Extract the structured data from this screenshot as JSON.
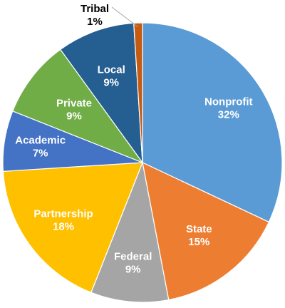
{
  "chart_data": {
    "type": "pie",
    "title": "",
    "start_angle_deg": 0,
    "direction": "clockwise",
    "slices": [
      {
        "name": "Nonprofit",
        "value": 32,
        "label": "32%",
        "color": "#5b9bd5",
        "text_color": "#ffffff",
        "dark_text": false
      },
      {
        "name": "State",
        "value": 15,
        "label": "15%",
        "color": "#ed7d31",
        "text_color": "#ffffff",
        "dark_text": false
      },
      {
        "name": "Federal",
        "value": 9,
        "label": "9%",
        "color": "#a5a5a5",
        "text_color": "#ffffff",
        "dark_text": false
      },
      {
        "name": "Partnership",
        "value": 18,
        "label": "18%",
        "color": "#ffc000",
        "text_color": "#ffffff",
        "dark_text": false
      },
      {
        "name": "Academic",
        "value": 7,
        "label": "7%",
        "color": "#4472c4",
        "text_color": "#ffffff",
        "dark_text": false
      },
      {
        "name": "Private",
        "value": 9,
        "label": "9%",
        "color": "#70ad47",
        "text_color": "#ffffff",
        "dark_text": false
      },
      {
        "name": "Local",
        "value": 9,
        "label": "9%",
        "color": "#255e91",
        "text_color": "#ffffff",
        "dark_text": false
      },
      {
        "name": "Tribal",
        "value": 1,
        "label": "1%",
        "color": "#c55a11",
        "text_color": "#000000",
        "dark_text": true
      }
    ]
  }
}
